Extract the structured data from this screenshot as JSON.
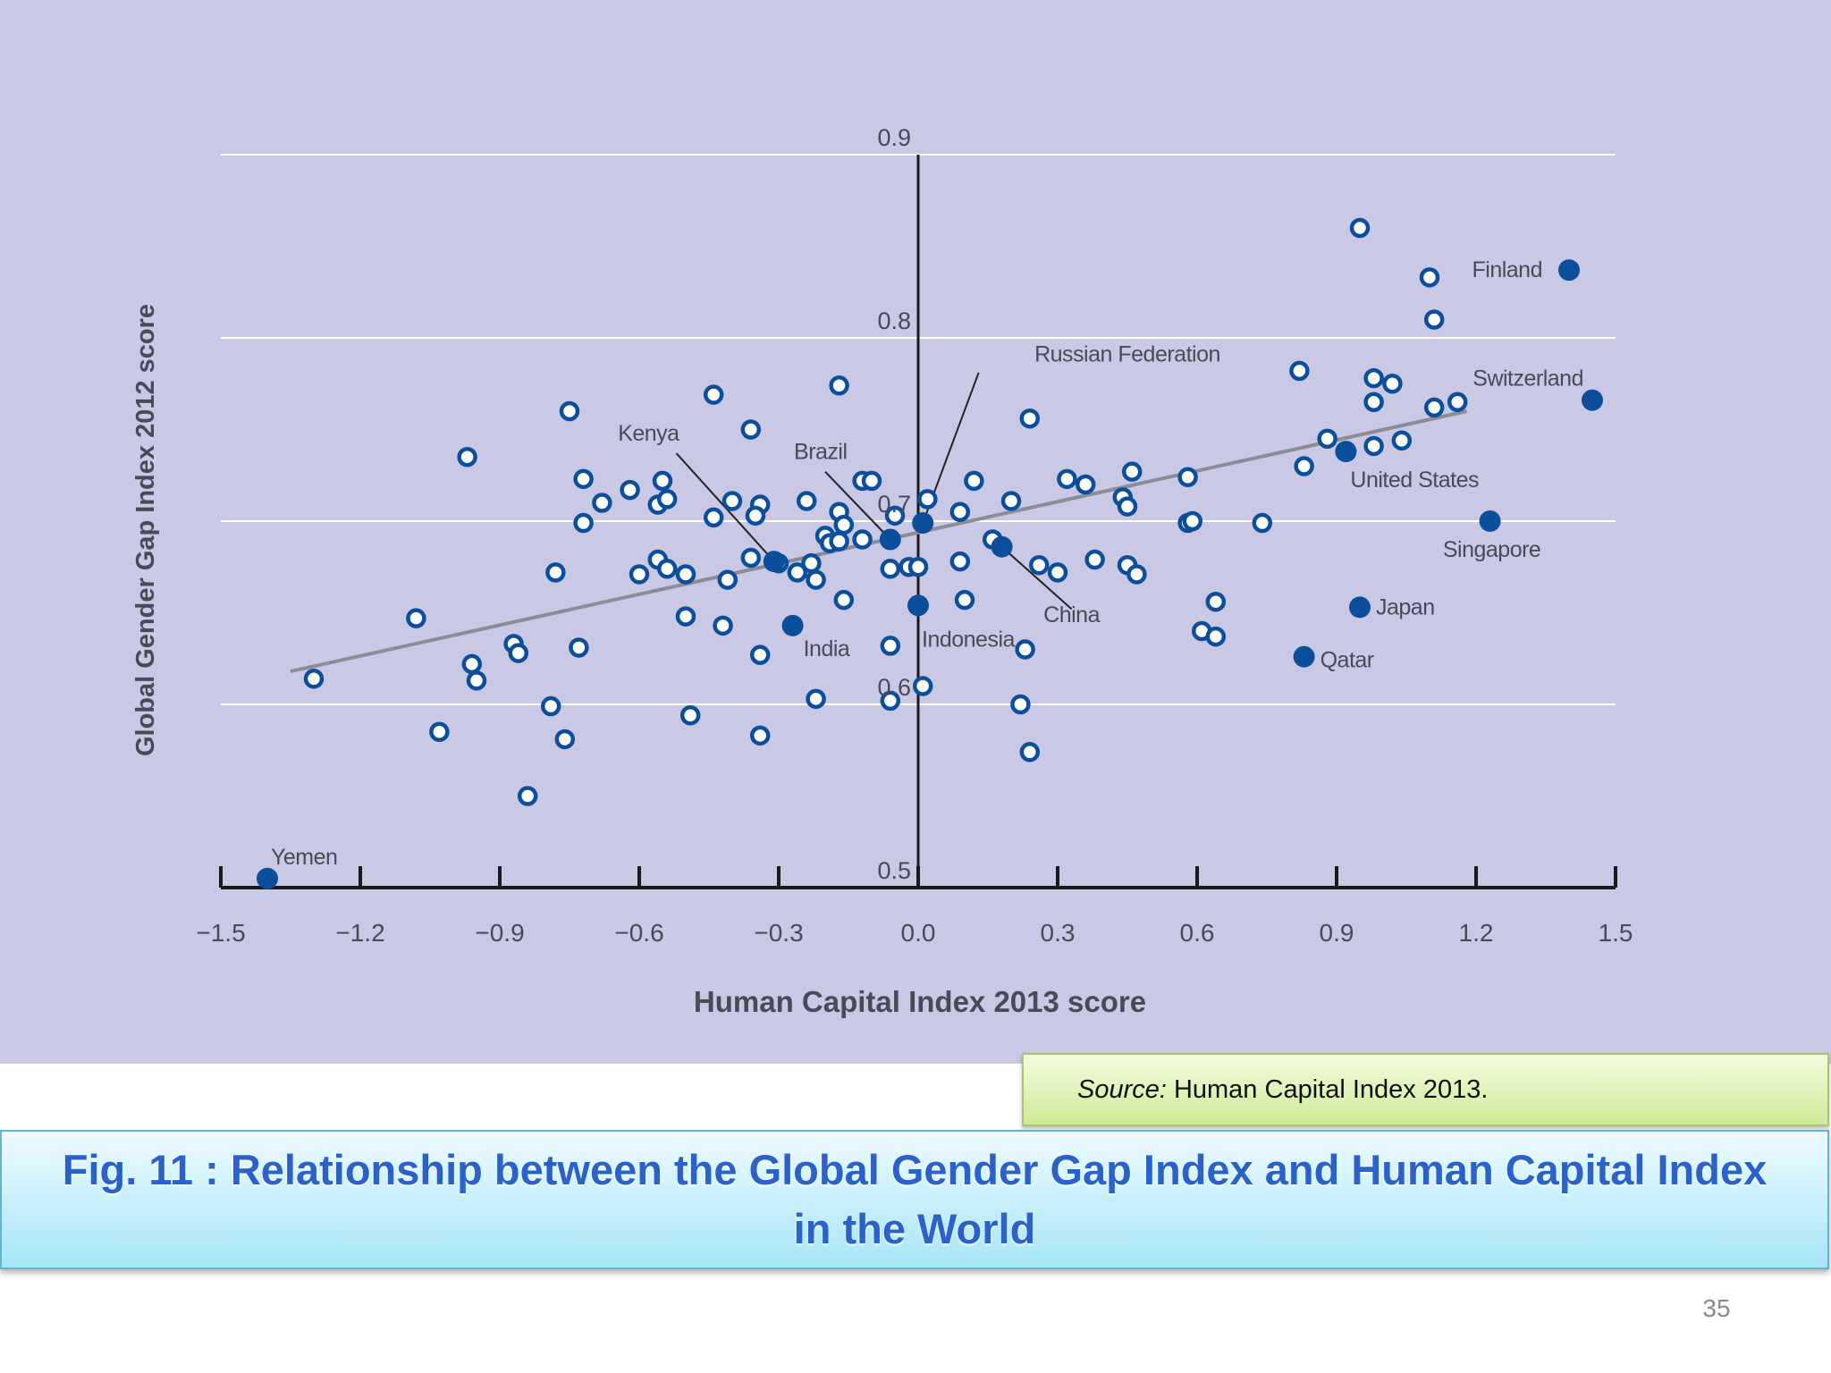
{
  "chart_data": {
    "type": "scatter",
    "xlabel": "Human Capital Index 2013 score",
    "ylabel": "Global Gender Gap Index 2012 score",
    "xlim": [
      -1.5,
      1.5
    ],
    "ylim": [
      0.5,
      0.9
    ],
    "x_ticks": [
      "−1.5",
      "−1.2",
      "−0.9",
      "−0.6",
      "−0.3",
      "0.0",
      "0.3",
      "0.6",
      "0.9",
      "1.2",
      "1.5"
    ],
    "y_ticks": [
      "0.5",
      "0.6",
      "0.7",
      "0.8",
      "0.9"
    ],
    "grid": "horizontal",
    "trendline": {
      "x": [
        -1.35,
        1.18
      ],
      "y": [
        0.618,
        0.76
      ]
    },
    "highlighted": [
      {
        "name": "Finland",
        "x": 1.4,
        "y": 0.837
      },
      {
        "name": "Switzerland",
        "x": 1.45,
        "y": 0.766
      },
      {
        "name": "United States",
        "x": 0.92,
        "y": 0.738
      },
      {
        "name": "Singapore",
        "x": 1.23,
        "y": 0.7
      },
      {
        "name": "Japan",
        "x": 0.95,
        "y": 0.653
      },
      {
        "name": "Qatar",
        "x": 0.83,
        "y": 0.626
      },
      {
        "name": "China",
        "x": 0.18,
        "y": 0.686
      },
      {
        "name": "Indonesia",
        "x": 0.0,
        "y": 0.654
      },
      {
        "name": "Russian Federation",
        "x": 0.01,
        "y": 0.699
      },
      {
        "name": "Brazil",
        "x": -0.06,
        "y": 0.69
      },
      {
        "name": "Kenya",
        "x": -0.31,
        "y": 0.678
      },
      {
        "name": "India",
        "x": -0.27,
        "y": 0.643
      },
      {
        "name": "Yemen",
        "x": -1.4,
        "y": 0.505
      }
    ],
    "points": [
      [
        0.95,
        0.86
      ],
      [
        1.1,
        0.833
      ],
      [
        1.11,
        0.81
      ],
      [
        0.82,
        0.782
      ],
      [
        0.98,
        0.778
      ],
      [
        1.02,
        0.775
      ],
      [
        0.98,
        0.765
      ],
      [
        1.11,
        0.762
      ],
      [
        1.16,
        0.765
      ],
      [
        0.88,
        0.745
      ],
      [
        0.98,
        0.741
      ],
      [
        1.04,
        0.744
      ],
      [
        0.83,
        0.73
      ],
      [
        -0.44,
        0.769
      ],
      [
        -0.17,
        0.774
      ],
      [
        -0.75,
        0.76
      ],
      [
        0.24,
        0.756
      ],
      [
        -0.36,
        0.75
      ],
      [
        -0.97,
        0.735
      ],
      [
        -0.72,
        0.723
      ],
      [
        -0.55,
        0.722
      ],
      [
        -0.62,
        0.717
      ],
      [
        -0.68,
        0.71
      ],
      [
        -0.56,
        0.709
      ],
      [
        -0.54,
        0.712
      ],
      [
        -0.72,
        0.699
      ],
      [
        -0.44,
        0.702
      ],
      [
        -0.4,
        0.711
      ],
      [
        -0.34,
        0.709
      ],
      [
        -0.35,
        0.703
      ],
      [
        -0.24,
        0.711
      ],
      [
        -0.12,
        0.722
      ],
      [
        -0.1,
        0.722
      ],
      [
        -0.17,
        0.705
      ],
      [
        -0.05,
        0.703
      ],
      [
        0.02,
        0.712
      ],
      [
        0.09,
        0.705
      ],
      [
        0.12,
        0.722
      ],
      [
        0.2,
        0.711
      ],
      [
        0.32,
        0.723
      ],
      [
        0.36,
        0.72
      ],
      [
        0.44,
        0.713
      ],
      [
        0.45,
        0.708
      ],
      [
        0.46,
        0.727
      ],
      [
        0.58,
        0.724
      ],
      [
        0.58,
        0.699
      ],
      [
        0.59,
        0.7
      ],
      [
        0.74,
        0.699
      ],
      [
        -0.16,
        0.698
      ],
      [
        -0.2,
        0.692
      ],
      [
        -0.19,
        0.688
      ],
      [
        -0.12,
        0.69
      ],
      [
        -0.17,
        0.689
      ],
      [
        0.16,
        0.69
      ],
      [
        -0.78,
        0.672
      ],
      [
        -0.6,
        0.671
      ],
      [
        -0.56,
        0.679
      ],
      [
        -0.54,
        0.674
      ],
      [
        -0.5,
        0.671
      ],
      [
        -0.41,
        0.668
      ],
      [
        -0.36,
        0.68
      ],
      [
        -0.3,
        0.677
      ],
      [
        -0.26,
        0.672
      ],
      [
        -0.23,
        0.677
      ],
      [
        -0.22,
        0.668
      ],
      [
        -0.06,
        0.674
      ],
      [
        -0.02,
        0.675
      ],
      [
        0.0,
        0.675
      ],
      [
        0.09,
        0.678
      ],
      [
        0.26,
        0.676
      ],
      [
        0.3,
        0.672
      ],
      [
        0.38,
        0.679
      ],
      [
        0.45,
        0.676
      ],
      [
        0.47,
        0.671
      ],
      [
        -1.08,
        0.647
      ],
      [
        -0.5,
        0.648
      ],
      [
        -0.42,
        0.643
      ],
      [
        -0.16,
        0.657
      ],
      [
        0.1,
        0.657
      ],
      [
        0.64,
        0.656
      ],
      [
        -0.87,
        0.633
      ],
      [
        -0.86,
        0.628
      ],
      [
        -0.73,
        0.631
      ],
      [
        -0.34,
        0.627
      ],
      [
        -0.06,
        0.632
      ],
      [
        0.23,
        0.63
      ],
      [
        0.61,
        0.64
      ],
      [
        0.64,
        0.637
      ],
      [
        -1.3,
        0.614
      ],
      [
        -0.96,
        0.622
      ],
      [
        -0.95,
        0.613
      ],
      [
        -0.79,
        0.599
      ],
      [
        -0.22,
        0.603
      ],
      [
        -0.49,
        0.594
      ],
      [
        -0.06,
        0.602
      ],
      [
        0.01,
        0.61
      ],
      [
        0.22,
        0.6
      ],
      [
        -1.03,
        0.585
      ],
      [
        -0.76,
        0.581
      ],
      [
        -0.34,
        0.583
      ],
      [
        0.24,
        0.574
      ],
      [
        -0.84,
        0.55
      ]
    ]
  },
  "source": {
    "prefix": "Source:",
    "text": "Human Capital Index 2013."
  },
  "caption": "Fig. 11 : Relationship between the Global Gender Gap Index and Human Capital Index in the World",
  "page_number": "35",
  "colors": {
    "highlight": "#0b4f9c",
    "open_point_stroke": "#0b4f9c",
    "trend": "#8c8c96",
    "panel": "#c9c9e6"
  }
}
